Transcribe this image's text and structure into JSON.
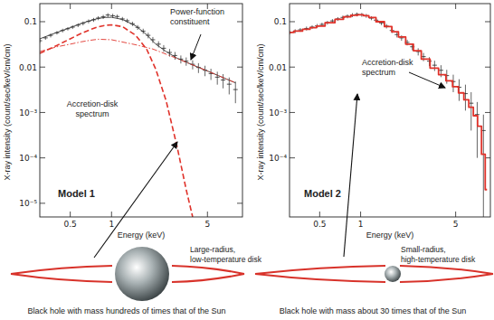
{
  "chart_data": [
    {
      "type": "line",
      "log": true,
      "xlabel": "Energy (keV)",
      "ylabel": "X-ray intensity (count/sec/keV/cm/cm)",
      "xlim": [
        0.3,
        9
      ],
      "ylim": [
        5e-06,
        0.25
      ],
      "xticks": [
        0.5,
        1,
        5
      ],
      "yticks": [
        0.1,
        0.01,
        {
          "value": 0.001,
          "label": "10⁻³"
        },
        {
          "value": 0.0001,
          "label": "10⁻⁴"
        },
        {
          "value": 1e-05,
          "label": "10⁻⁵"
        }
      ],
      "annotations": [
        "Model 1",
        "Large-radius, low-temperature disk",
        "Black hole with mass hundreds of times that of the Sun"
      ],
      "series": [
        {
          "type": "scatter",
          "marker": "cross",
          "color": "#222222",
          "x": [
            0.3,
            0.33,
            0.36,
            0.4,
            0.44,
            0.48,
            0.52,
            0.57,
            0.62,
            0.68,
            0.74,
            0.8,
            0.87,
            0.94,
            1.02,
            1.1,
            1.2,
            1.3,
            1.42,
            1.55,
            1.7,
            1.85,
            2.0,
            2.2,
            2.4,
            2.65,
            2.9,
            3.2,
            3.5,
            3.9,
            4.3,
            4.8,
            5.3,
            5.9,
            6.5,
            7.2,
            8.0
          ],
          "values": [
            0.038,
            0.044,
            0.05,
            0.057,
            0.064,
            0.07,
            0.076,
            0.084,
            0.092,
            0.102,
            0.11,
            0.12,
            0.128,
            0.14,
            0.135,
            0.13,
            0.115,
            0.105,
            0.09,
            0.075,
            0.062,
            0.05,
            0.04,
            0.032,
            0.026,
            0.021,
            0.018,
            0.015,
            0.0135,
            0.0115,
            0.0098,
            0.0085,
            0.0072,
            0.006,
            0.0052,
            0.0042,
            0.0032
          ],
          "errors": [
            0.004,
            0.004,
            0.005,
            0.005,
            0.006,
            0.006,
            0.007,
            0.008,
            0.009,
            0.01,
            0.011,
            0.012,
            0.013,
            0.014,
            0.014,
            0.013,
            0.012,
            0.011,
            0.01,
            0.009,
            0.008,
            0.007,
            0.006,
            0.005,
            0.0045,
            0.004,
            0.0035,
            0.003,
            0.0028,
            0.0026,
            0.0024,
            0.0022,
            0.002,
            0.0019,
            0.0018,
            0.0017,
            0.0016
          ]
        },
        {
          "type": "line",
          "line_style": "solid",
          "color": "#333333",
          "x": [
            0.3,
            0.4,
            0.5,
            0.6,
            0.7,
            0.8,
            0.9,
            1.0,
            1.2,
            1.5,
            1.8,
            2.1,
            2.5,
            3,
            4,
            5,
            6,
            8
          ],
          "values": [
            0.042,
            0.058,
            0.074,
            0.091,
            0.106,
            0.118,
            0.124,
            0.125,
            0.112,
            0.081,
            0.052,
            0.032,
            0.022,
            0.0157,
            0.0108,
            0.0082,
            0.0065,
            0.0045
          ]
        },
        {
          "name": "Power-function constituent",
          "type": "line",
          "line_style": "dashdot",
          "color": "#e0322a",
          "x": [
            0.3,
            0.4,
            0.5,
            0.6,
            0.7,
            0.8,
            1.0,
            1.5,
            2,
            3,
            4,
            5,
            6,
            8
          ],
          "values": [
            0.022,
            0.028,
            0.032,
            0.036,
            0.039,
            0.041,
            0.04,
            0.031,
            0.025,
            0.0155,
            0.0108,
            0.0082,
            0.0065,
            0.0045
          ]
        },
        {
          "name": "Accretion-disk spectrum",
          "type": "line",
          "line_style": "dashed",
          "color": "#e0322a",
          "x": [
            0.3,
            0.4,
            0.5,
            0.6,
            0.7,
            0.8,
            0.9,
            1.0,
            1.2,
            1.5,
            1.8,
            2.1,
            2.5,
            3.0,
            3.5,
            3.9
          ],
          "values": [
            0.02,
            0.03,
            0.042,
            0.055,
            0.067,
            0.077,
            0.083,
            0.085,
            0.078,
            0.05,
            0.025,
            0.009,
            0.0018,
            0.00018,
            2e-05,
            5e-06
          ]
        }
      ]
    },
    {
      "type": "line",
      "log": true,
      "xlabel": "Energy (keV)",
      "ylabel": "X-ray intensity (count/sec/keV/cm/cm)",
      "xlim": [
        0.3,
        9
      ],
      "ylim": [
        5e-06,
        0.25
      ],
      "xticks": [
        0.5,
        1,
        5
      ],
      "yticks": [
        0.1,
        0.01,
        {
          "value": 0.001,
          "label": "10⁻³"
        },
        {
          "value": 0.0001,
          "label": "10⁻⁴"
        }
      ],
      "annotations": [
        "Model 2",
        "Small-radius, high-temperature disk",
        "Black hole with mass about 30 times that of the Sun"
      ],
      "series": [
        {
          "type": "scatter",
          "marker": "cross",
          "color": "#222222",
          "x": [
            0.3,
            0.33,
            0.36,
            0.4,
            0.44,
            0.48,
            0.52,
            0.57,
            0.62,
            0.68,
            0.74,
            0.8,
            0.87,
            0.94,
            1.02,
            1.1,
            1.2,
            1.3,
            1.42,
            1.55,
            1.7,
            1.85,
            2.0,
            2.2,
            2.4,
            2.65,
            2.9,
            3.2,
            3.5,
            3.9,
            4.3,
            4.8,
            5.3,
            5.9,
            6.5,
            7.2,
            8.0
          ],
          "values": [
            0.058,
            0.062,
            0.066,
            0.071,
            0.076,
            0.081,
            0.087,
            0.095,
            0.104,
            0.115,
            0.124,
            0.132,
            0.14,
            0.145,
            0.142,
            0.135,
            0.12,
            0.108,
            0.094,
            0.08,
            0.064,
            0.052,
            0.044,
            0.035,
            0.028,
            0.022,
            0.017,
            0.0135,
            0.011,
            0.0085,
            0.0065,
            0.0048,
            0.0036,
            0.0026,
            0.0016,
            0.0009,
            0.0004
          ],
          "errors": [
            0.006,
            0.006,
            0.006,
            0.007,
            0.007,
            0.008,
            0.008,
            0.009,
            0.01,
            0.011,
            0.012,
            0.013,
            0.014,
            0.014,
            0.014,
            0.013,
            0.012,
            0.011,
            0.01,
            0.009,
            0.008,
            0.007,
            0.006,
            0.005,
            0.0045,
            0.004,
            0.0035,
            0.003,
            0.0028,
            0.0025,
            0.0022,
            0.002,
            0.0018,
            0.0015,
            0.0012,
            0.0008,
            0.0005
          ]
        },
        {
          "name": "Accretion-disk spectrum",
          "type": "line",
          "line_style": "step",
          "color": "#e0322a",
          "x": [
            0.3,
            0.35,
            0.4,
            0.45,
            0.5,
            0.6,
            0.7,
            0.8,
            0.9,
            1.0,
            1.1,
            1.2,
            1.4,
            1.6,
            1.8,
            2.0,
            2.3,
            2.6,
            3.0,
            3.5,
            4.0,
            4.5,
            5.0,
            5.5,
            6.0,
            6.5,
            7.0,
            7.5,
            8.0,
            8.5
          ],
          "values": [
            0.058,
            0.062,
            0.068,
            0.074,
            0.08,
            0.095,
            0.113,
            0.128,
            0.138,
            0.142,
            0.136,
            0.124,
            0.1,
            0.078,
            0.06,
            0.046,
            0.032,
            0.023,
            0.015,
            0.0095,
            0.0068,
            0.005,
            0.0037,
            0.0027,
            0.0019,
            0.0013,
            0.00085,
            0.0005,
            0.00012,
            2e-05
          ]
        }
      ]
    }
  ]
}
